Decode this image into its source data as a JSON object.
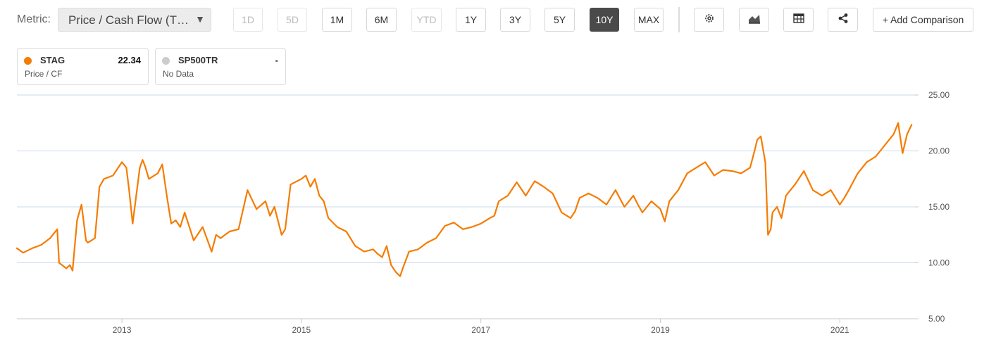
{
  "toolbar": {
    "metric_label": "Metric:",
    "metric_value": "Price / Cash Flow (T…",
    "ranges": [
      {
        "label": "1D",
        "state": "disabled"
      },
      {
        "label": "5D",
        "state": "disabled"
      },
      {
        "label": "1M",
        "state": "normal"
      },
      {
        "label": "6M",
        "state": "normal"
      },
      {
        "label": "YTD",
        "state": "disabled"
      },
      {
        "label": "1Y",
        "state": "normal"
      },
      {
        "label": "3Y",
        "state": "normal"
      },
      {
        "label": "5Y",
        "state": "normal"
      },
      {
        "label": "10Y",
        "state": "active"
      },
      {
        "label": "MAX",
        "state": "normal"
      }
    ],
    "icons": [
      "gear-icon",
      "area-chart-icon",
      "table-icon",
      "share-icon"
    ],
    "add_comparison": "+ Add Comparison"
  },
  "legend": [
    {
      "name": "STAG",
      "value": "22.34",
      "sub": "Price / CF",
      "color": "#f57c00"
    },
    {
      "name": "SP500TR",
      "value": "-",
      "sub": "No Data",
      "color": "#cccccc"
    }
  ],
  "chart_data": {
    "type": "line",
    "series": [
      {
        "name": "STAG",
        "color": "#f57c00",
        "x": [
          2011.83,
          2011.9,
          2012.0,
          2012.1,
          2012.2,
          2012.28,
          2012.3,
          2012.38,
          2012.42,
          2012.45,
          2012.5,
          2012.55,
          2012.6,
          2012.62,
          2012.7,
          2012.75,
          2012.8,
          2012.9,
          2013.0,
          2013.05,
          2013.08,
          2013.12,
          2013.2,
          2013.23,
          2013.26,
          2013.3,
          2013.4,
          2013.45,
          2013.5,
          2013.55,
          2013.6,
          2013.65,
          2013.7,
          2013.8,
          2013.9,
          2014.0,
          2014.05,
          2014.1,
          2014.2,
          2014.3,
          2014.4,
          2014.5,
          2014.6,
          2014.65,
          2014.7,
          2014.78,
          2014.82,
          2014.88,
          2015.0,
          2015.05,
          2015.1,
          2015.15,
          2015.2,
          2015.25,
          2015.3,
          2015.4,
          2015.5,
          2015.6,
          2015.7,
          2015.8,
          2015.85,
          2015.9,
          2015.95,
          2016.0,
          2016.05,
          2016.1,
          2016.13,
          2016.2,
          2016.3,
          2016.4,
          2016.5,
          2016.6,
          2016.7,
          2016.8,
          2016.9,
          2017.0,
          2017.1,
          2017.15,
          2017.2,
          2017.3,
          2017.4,
          2017.5,
          2017.6,
          2017.7,
          2017.8,
          2017.9,
          2018.0,
          2018.05,
          2018.1,
          2018.2,
          2018.3,
          2018.4,
          2018.5,
          2018.6,
          2018.7,
          2018.75,
          2018.8,
          2018.9,
          2019.0,
          2019.05,
          2019.1,
          2019.2,
          2019.3,
          2019.4,
          2019.5,
          2019.6,
          2019.7,
          2019.8,
          2019.9,
          2020.0,
          2020.05,
          2020.08,
          2020.12,
          2020.17,
          2020.2,
          2020.23,
          2020.25,
          2020.3,
          2020.35,
          2020.4,
          2020.5,
          2020.6,
          2020.7,
          2020.8,
          2020.9,
          2021.0,
          2021.05,
          2021.1,
          2021.2,
          2021.3,
          2021.4,
          2021.5,
          2021.6,
          2021.65,
          2021.7,
          2021.75,
          2021.8
        ],
        "y": [
          11.3,
          10.9,
          11.3,
          11.6,
          12.2,
          13.0,
          10.0,
          9.5,
          9.8,
          9.3,
          13.8,
          15.2,
          12.0,
          11.8,
          12.2,
          16.8,
          17.5,
          17.8,
          19.0,
          18.5,
          16.5,
          13.5,
          18.5,
          19.2,
          18.6,
          17.5,
          18.0,
          18.8,
          16.0,
          13.5,
          13.8,
          13.2,
          14.5,
          12.0,
          13.2,
          11.0,
          12.5,
          12.2,
          12.8,
          13.0,
          16.5,
          14.8,
          15.5,
          14.2,
          15.0,
          12.5,
          13.0,
          17.0,
          17.5,
          17.8,
          16.8,
          17.5,
          16.0,
          15.5,
          14.0,
          13.2,
          12.8,
          11.5,
          11.0,
          11.2,
          10.8,
          10.5,
          11.5,
          9.8,
          9.2,
          8.8,
          9.5,
          11.0,
          11.2,
          11.8,
          12.2,
          13.3,
          13.6,
          13.0,
          13.2,
          13.5,
          14.0,
          14.2,
          15.5,
          16.0,
          17.2,
          16.0,
          17.3,
          16.8,
          16.2,
          14.5,
          14.0,
          14.6,
          15.8,
          16.2,
          15.8,
          15.2,
          16.5,
          15.0,
          16.0,
          15.2,
          14.5,
          15.5,
          14.8,
          13.7,
          15.5,
          16.5,
          18.0,
          18.5,
          19.0,
          17.8,
          18.3,
          18.2,
          18.0,
          18.5,
          20.0,
          21.0,
          21.3,
          19.0,
          12.5,
          13.0,
          14.5,
          15.0,
          14.0,
          16.0,
          17.0,
          18.2,
          16.5,
          16.0,
          16.5,
          15.2,
          15.8,
          16.5,
          18.0,
          19.0,
          19.5,
          20.5,
          21.5,
          22.5,
          19.8,
          21.5,
          22.34
        ]
      }
    ],
    "xlim": [
      2011.83,
      2021.83
    ],
    "ylim": [
      5,
      25
    ],
    "xticks": [
      2013,
      2015,
      2017,
      2019,
      2021
    ],
    "xtick_labels": [
      "2013",
      "2015",
      "2017",
      "2019",
      "2021"
    ],
    "yticks": [
      5,
      10,
      15,
      20,
      25
    ],
    "ytick_labels": [
      "5.00",
      "10.00",
      "15.00",
      "20.00",
      "25.00"
    ],
    "y_axis_position": "right",
    "grid": "horizontal"
  }
}
